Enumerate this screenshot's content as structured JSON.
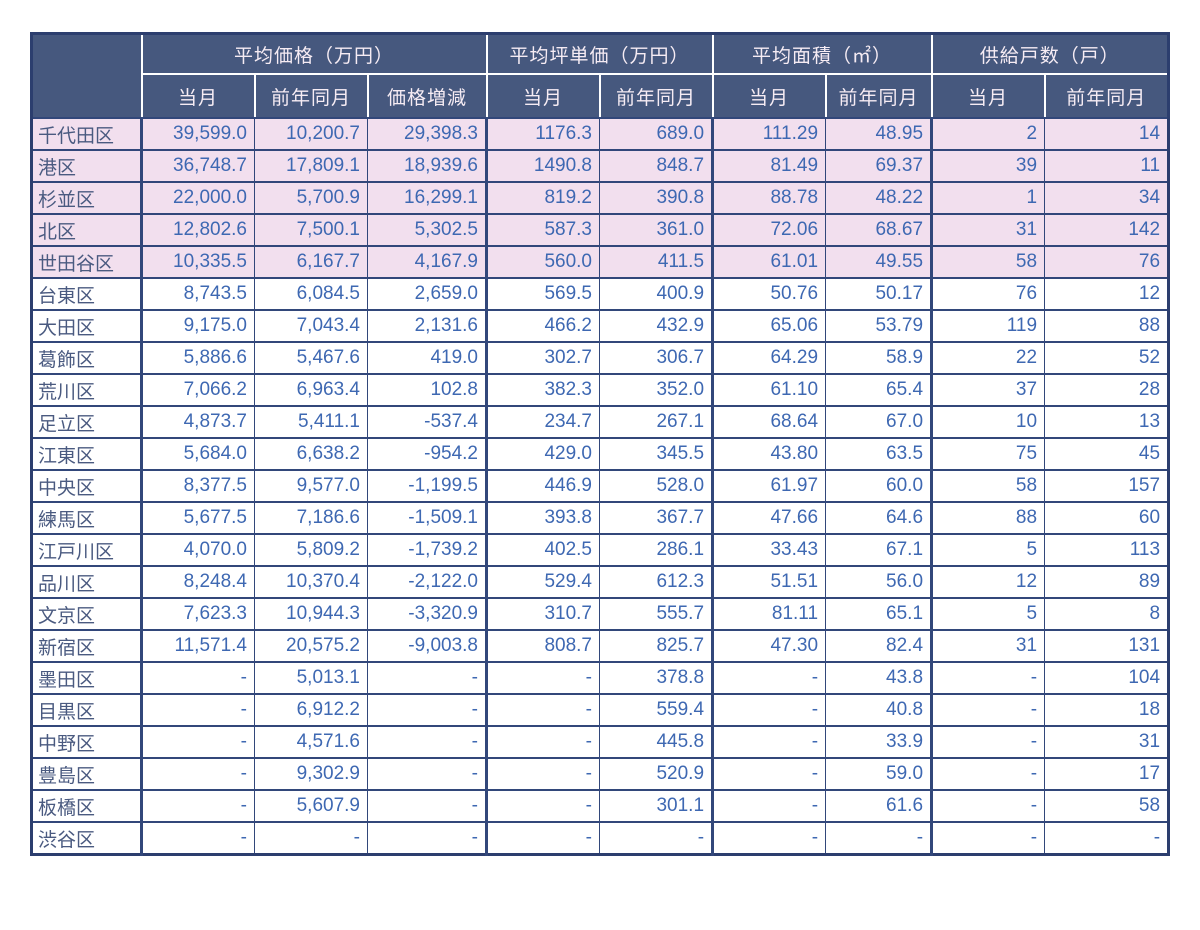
{
  "colors": {
    "header_bg": "#46587E",
    "header_text": "#F6ECF4",
    "header_separator": "#FFFFFF",
    "highlight_row_bg": "#F2DFEE",
    "row_bg": "#FFFFFF",
    "number_text": "#3E68B2",
    "ward_text": "#4A5A80",
    "grid_border": "#32477A",
    "outer_border": "#2C3E6E"
  },
  "chart_data": {
    "type": "table",
    "corner_label": "",
    "column_groups": [
      {
        "label": "平均価格（万円）",
        "subcolumns": [
          "当月",
          "前年同月",
          "価格増減"
        ]
      },
      {
        "label": "平均坪単価（万円）",
        "subcolumns": [
          "当月",
          "前年同月"
        ]
      },
      {
        "label": "平均面積（㎡）",
        "subcolumns": [
          "当月",
          "前年同月"
        ]
      },
      {
        "label": "供給戸数（戸）",
        "subcolumns": [
          "当月",
          "前年同月"
        ]
      }
    ],
    "rows": [
      {
        "ward": "千代田区",
        "highlight": true,
        "values": [
          "39,599.0",
          "10,200.7",
          "29,398.3",
          "1176.3",
          "689.0",
          "111.29",
          "48.95",
          "2",
          "14"
        ]
      },
      {
        "ward": "港区",
        "highlight": true,
        "values": [
          "36,748.7",
          "17,809.1",
          "18,939.6",
          "1490.8",
          "848.7",
          "81.49",
          "69.37",
          "39",
          "11"
        ]
      },
      {
        "ward": "杉並区",
        "highlight": true,
        "values": [
          "22,000.0",
          "5,700.9",
          "16,299.1",
          "819.2",
          "390.8",
          "88.78",
          "48.22",
          "1",
          "34"
        ]
      },
      {
        "ward": "北区",
        "highlight": true,
        "values": [
          "12,802.6",
          "7,500.1",
          "5,302.5",
          "587.3",
          "361.0",
          "72.06",
          "68.67",
          "31",
          "142"
        ]
      },
      {
        "ward": "世田谷区",
        "highlight": true,
        "values": [
          "10,335.5",
          "6,167.7",
          "4,167.9",
          "560.0",
          "411.5",
          "61.01",
          "49.55",
          "58",
          "76"
        ]
      },
      {
        "ward": "台東区",
        "highlight": false,
        "values": [
          "8,743.5",
          "6,084.5",
          "2,659.0",
          "569.5",
          "400.9",
          "50.76",
          "50.17",
          "76",
          "12"
        ]
      },
      {
        "ward": "大田区",
        "highlight": false,
        "values": [
          "9,175.0",
          "7,043.4",
          "2,131.6",
          "466.2",
          "432.9",
          "65.06",
          "53.79",
          "119",
          "88"
        ]
      },
      {
        "ward": "葛飾区",
        "highlight": false,
        "values": [
          "5,886.6",
          "5,467.6",
          "419.0",
          "302.7",
          "306.7",
          "64.29",
          "58.9",
          "22",
          "52"
        ]
      },
      {
        "ward": "荒川区",
        "highlight": false,
        "values": [
          "7,066.2",
          "6,963.4",
          "102.8",
          "382.3",
          "352.0",
          "61.10",
          "65.4",
          "37",
          "28"
        ]
      },
      {
        "ward": "足立区",
        "highlight": false,
        "values": [
          "4,873.7",
          "5,411.1",
          "-537.4",
          "234.7",
          "267.1",
          "68.64",
          "67.0",
          "10",
          "13"
        ]
      },
      {
        "ward": "江東区",
        "highlight": false,
        "values": [
          "5,684.0",
          "6,638.2",
          "-954.2",
          "429.0",
          "345.5",
          "43.80",
          "63.5",
          "75",
          "45"
        ]
      },
      {
        "ward": "中央区",
        "highlight": false,
        "values": [
          "8,377.5",
          "9,577.0",
          "-1,199.5",
          "446.9",
          "528.0",
          "61.97",
          "60.0",
          "58",
          "157"
        ]
      },
      {
        "ward": "練馬区",
        "highlight": false,
        "values": [
          "5,677.5",
          "7,186.6",
          "-1,509.1",
          "393.8",
          "367.7",
          "47.66",
          "64.6",
          "88",
          "60"
        ]
      },
      {
        "ward": "江戸川区",
        "highlight": false,
        "values": [
          "4,070.0",
          "5,809.2",
          "-1,739.2",
          "402.5",
          "286.1",
          "33.43",
          "67.1",
          "5",
          "113"
        ]
      },
      {
        "ward": "品川区",
        "highlight": false,
        "values": [
          "8,248.4",
          "10,370.4",
          "-2,122.0",
          "529.4",
          "612.3",
          "51.51",
          "56.0",
          "12",
          "89"
        ]
      },
      {
        "ward": "文京区",
        "highlight": false,
        "values": [
          "7,623.3",
          "10,944.3",
          "-3,320.9",
          "310.7",
          "555.7",
          "81.11",
          "65.1",
          "5",
          "8"
        ]
      },
      {
        "ward": "新宿区",
        "highlight": false,
        "values": [
          "11,571.4",
          "20,575.2",
          "-9,003.8",
          "808.7",
          "825.7",
          "47.30",
          "82.4",
          "31",
          "131"
        ]
      },
      {
        "ward": "墨田区",
        "highlight": false,
        "values": [
          "-",
          "5,013.1",
          "-",
          "-",
          "378.8",
          "-",
          "43.8",
          "-",
          "104"
        ]
      },
      {
        "ward": "目黒区",
        "highlight": false,
        "values": [
          "-",
          "6,912.2",
          "-",
          "-",
          "559.4",
          "-",
          "40.8",
          "-",
          "18"
        ]
      },
      {
        "ward": "中野区",
        "highlight": false,
        "values": [
          "-",
          "4,571.6",
          "-",
          "-",
          "445.8",
          "-",
          "33.9",
          "-",
          "31"
        ]
      },
      {
        "ward": "豊島区",
        "highlight": false,
        "values": [
          "-",
          "9,302.9",
          "-",
          "-",
          "520.9",
          "-",
          "59.0",
          "-",
          "17"
        ]
      },
      {
        "ward": "板橋区",
        "highlight": false,
        "values": [
          "-",
          "5,607.9",
          "-",
          "-",
          "301.1",
          "-",
          "61.6",
          "-",
          "58"
        ]
      },
      {
        "ward": "渋谷区",
        "highlight": false,
        "values": [
          "-",
          "-",
          "-",
          "-",
          "-",
          "-",
          "-",
          "-",
          "-"
        ]
      }
    ]
  }
}
